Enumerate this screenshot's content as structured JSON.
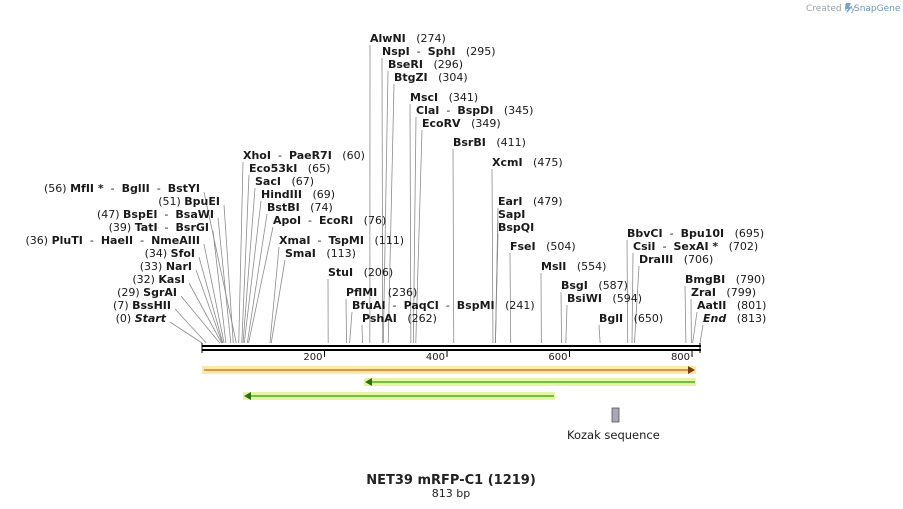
{
  "credit": {
    "text": "Created by",
    "brand": "SnapGene"
  },
  "title": "NET39 mRFP-C1 (1219)",
  "subtitle": "813 bp",
  "ruler": {
    "length": 813,
    "ticks": [
      200,
      400,
      600,
      800
    ]
  },
  "feature_label": "Kozak sequence",
  "colors": {
    "backbone": "#000000",
    "orange": "#e8a060",
    "green": "#4caf1e",
    "kozak": "#9999aa"
  },
  "sites": [
    {
      "parts": [
        [
          "AlwNI",
          "b"
        ]
      ],
      "num": "(274)",
      "pos": 274
    },
    {
      "parts": [
        [
          "NspI",
          "b"
        ],
        [
          "  -  ",
          ""
        ],
        [
          "SphI",
          "b"
        ]
      ],
      "num": "(295)",
      "pos": 295
    },
    {
      "parts": [
        [
          "BseRI",
          "b"
        ]
      ],
      "num": "(296)",
      "pos": 296
    },
    {
      "parts": [
        [
          "BtgZI",
          "b"
        ]
      ],
      "num": "(304)",
      "pos": 304
    },
    {
      "parts": [
        [
          "MscI",
          "b"
        ]
      ],
      "num": "(341)",
      "pos": 341
    },
    {
      "parts": [
        [
          "ClaI",
          "b"
        ],
        [
          "  -  ",
          ""
        ],
        [
          "BspDI",
          "b"
        ]
      ],
      "num": "(345)",
      "pos": 345
    },
    {
      "parts": [
        [
          "EcoRV",
          "b"
        ]
      ],
      "num": "(349)",
      "pos": 349
    },
    {
      "parts": [
        [
          "BsrBI",
          "b"
        ]
      ],
      "num": "(411)",
      "pos": 411
    },
    {
      "parts": [
        [
          "XcmI",
          "b"
        ]
      ],
      "num": "(475)",
      "pos": 475
    },
    {
      "parts": [
        [
          "XhoI",
          "b"
        ],
        [
          "  -  ",
          ""
        ],
        [
          "PaeR7I",
          "b"
        ]
      ],
      "num": "(60)",
      "pos": 60
    },
    {
      "parts": [
        [
          "Eco53kI",
          "b"
        ]
      ],
      "num": "(65)",
      "pos": 65
    },
    {
      "parts": [
        [
          "SacI",
          "b"
        ]
      ],
      "num": "(67)",
      "pos": 67
    },
    {
      "parts": [
        [
          "HindIII",
          "b"
        ]
      ],
      "num": "(69)",
      "pos": 69
    },
    {
      "parts": [
        [
          "BstBI",
          "b"
        ]
      ],
      "num": "(74)",
      "pos": 74
    },
    {
      "parts": [
        [
          "ApoI",
          "b"
        ],
        [
          "  -  ",
          ""
        ],
        [
          "EcoRI",
          "b"
        ]
      ],
      "num": "(76)",
      "pos": 76
    },
    {
      "parts": [
        [
          "XmaI",
          "b"
        ],
        [
          "  -  ",
          ""
        ],
        [
          "TspMI",
          "b"
        ]
      ],
      "num": "(111)",
      "pos": 111
    },
    {
      "parts": [
        [
          "SmaI",
          "b"
        ]
      ],
      "num": "(113)",
      "pos": 113
    },
    {
      "parts": [
        [
          "StuI",
          "b"
        ]
      ],
      "num": "(206)",
      "pos": 206
    },
    {
      "parts": [
        [
          "PflMI",
          "b"
        ]
      ],
      "num": "(236)",
      "pos": 236
    },
    {
      "parts": [
        [
          "BfuAI",
          "b"
        ],
        [
          "  -  ",
          ""
        ],
        [
          "PaqCI",
          "b"
        ],
        [
          "  -  ",
          ""
        ],
        [
          "BspMI",
          "b"
        ]
      ],
      "num": "(241)",
      "pos": 241
    },
    {
      "parts": [
        [
          "PshAI",
          "b"
        ]
      ],
      "num": "(262)",
      "pos": 262
    },
    {
      "parts": [
        [
          "EarI",
          "b"
        ]
      ],
      "num": "(479)",
      "pos": 479
    },
    {
      "parts": [
        [
          "SapI",
          "b"
        ]
      ],
      "num": "",
      "pos": 479
    },
    {
      "parts": [
        [
          "BspQI",
          "b"
        ]
      ],
      "num": "",
      "pos": 479
    },
    {
      "parts": [
        [
          "FseI",
          "b"
        ]
      ],
      "num": "(504)",
      "pos": 504
    },
    {
      "parts": [
        [
          "MslI",
          "b"
        ]
      ],
      "num": "(554)",
      "pos": 554
    },
    {
      "parts": [
        [
          "BsgI",
          "b"
        ]
      ],
      "num": "(587)",
      "pos": 587
    },
    {
      "parts": [
        [
          "BsiWI",
          "b"
        ]
      ],
      "num": "(594)",
      "pos": 594
    },
    {
      "parts": [
        [
          "BglI",
          "b"
        ]
      ],
      "num": "(650)",
      "pos": 650
    },
    {
      "parts": [
        [
          "BbvCI",
          "b"
        ],
        [
          "  -  ",
          ""
        ],
        [
          "Bpu10I",
          "b"
        ]
      ],
      "num": "(695)",
      "pos": 695
    },
    {
      "parts": [
        [
          "CsiI",
          "b"
        ],
        [
          "  -  ",
          ""
        ],
        [
          "SexAI *",
          "b"
        ]
      ],
      "num": "(702)",
      "pos": 702
    },
    {
      "parts": [
        [
          "DraIII",
          "b"
        ]
      ],
      "num": "(706)",
      "pos": 706
    },
    {
      "parts": [
        [
          "BmgBI",
          "b"
        ]
      ],
      "num": "(790)",
      "pos": 790
    },
    {
      "parts": [
        [
          "ZraI",
          "b"
        ]
      ],
      "num": "(799)",
      "pos": 799
    },
    {
      "parts": [
        [
          "AatII",
          "b"
        ]
      ],
      "num": "(801)",
      "pos": 801
    },
    {
      "parts": [
        [
          "End",
          "bi"
        ]
      ],
      "num": "(813)",
      "pos": 813
    },
    {
      "parts": [
        [
          "MfII *",
          "b"
        ],
        [
          "  -  ",
          ""
        ],
        [
          "BglII",
          "b"
        ],
        [
          "  -  ",
          ""
        ],
        [
          "BstYI",
          "b"
        ]
      ],
      "num": "(56)",
      "pos": 56,
      "left": true
    },
    {
      "parts": [
        [
          "BpuEI",
          "b"
        ]
      ],
      "num": "(51)",
      "pos": 51,
      "left": true
    },
    {
      "parts": [
        [
          "BspEI",
          "b"
        ],
        [
          "  -  ",
          ""
        ],
        [
          "BsaWI",
          "b"
        ]
      ],
      "num": "(47)",
      "pos": 47,
      "left": true
    },
    {
      "parts": [
        [
          "TatI",
          "b"
        ],
        [
          "  -  ",
          ""
        ],
        [
          "BsrGI",
          "b"
        ]
      ],
      "num": "(39)",
      "pos": 39,
      "left": true
    },
    {
      "parts": [
        [
          "PluTI",
          "b"
        ],
        [
          "  -  ",
          ""
        ],
        [
          "HaeII",
          "b"
        ],
        [
          "  -  ",
          ""
        ],
        [
          "NmeAIII",
          "b"
        ]
      ],
      "num": "(36)",
      "pos": 36,
      "left": true
    },
    {
      "parts": [
        [
          "SfoI",
          "b"
        ]
      ],
      "num": "(34)",
      "pos": 34,
      "left": true
    },
    {
      "parts": [
        [
          "NarI",
          "b"
        ]
      ],
      "num": "(33)",
      "pos": 33,
      "left": true
    },
    {
      "parts": [
        [
          "KasI",
          "b"
        ]
      ],
      "num": "(32)",
      "pos": 32,
      "left": true
    },
    {
      "parts": [
        [
          "SgrAI",
          "b"
        ]
      ],
      "num": "(29)",
      "pos": 29,
      "left": true
    },
    {
      "parts": [
        [
          "BssHII",
          "b"
        ]
      ],
      "num": "(7)",
      "pos": 7,
      "left": true
    },
    {
      "parts": [
        [
          "Start",
          "bi"
        ]
      ],
      "num": "(0)",
      "pos": 0,
      "left": true
    }
  ]
}
